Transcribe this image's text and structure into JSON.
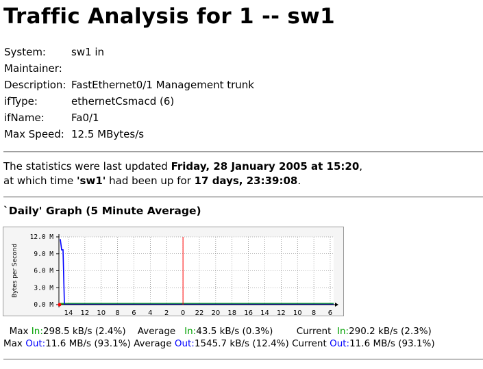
{
  "title": "Traffic Analysis for 1 -- sw1",
  "info": [
    {
      "key": "System:",
      "value": "sw1 in"
    },
    {
      "key": "Maintainer:",
      "value": ""
    },
    {
      "key": "Description:",
      "value": "FastEthernet0/1 Management trunk"
    },
    {
      "key": "ifType:",
      "value": "ethernetCsmacd (6)"
    },
    {
      "key": "ifName:",
      "value": "Fa0/1"
    },
    {
      "key": "Max Speed:",
      "value": "12.5 MBytes/s"
    }
  ],
  "stats": {
    "line1_prefix": "The statistics were last updated ",
    "updated": "Friday, 28 January 2005 at 15:20",
    "line1_suffix": ",",
    "line2_prefix": "at which time ",
    "system": "'sw1'",
    "line2_mid": " had been up for ",
    "uptime": "17 days, 23:39:08",
    "line2_suffix": "."
  },
  "graph_title": "`Daily' Graph (5 Minute Average)",
  "colors": {
    "in": "#00a000",
    "out": "#0000ff",
    "now_marker": "#ff0000",
    "grid": "#666666"
  },
  "chart_data": {
    "type": "area",
    "ylabel": "Bytes per Second",
    "y_ticks": [
      "0.0 M",
      "3.0 M",
      "6.0 M",
      "9.0 M",
      "12.0 M"
    ],
    "ylim": [
      0,
      12
    ],
    "x_ticks": [
      "14",
      "12",
      "10",
      "8",
      "6",
      "4",
      "2",
      "0",
      "22",
      "20",
      "18",
      "16",
      "14",
      "12",
      "10",
      "8",
      "6"
    ],
    "grid": true,
    "series": [
      {
        "name": "In",
        "values": [
          0.3,
          0.3,
          0.3,
          0.3,
          0.3,
          0.3,
          0.3,
          0.3,
          0.3,
          0.3,
          0.3,
          0.3,
          0.3,
          0.3,
          0.3,
          0.3,
          0.3
        ]
      },
      {
        "name": "Out",
        "values": [
          11.6,
          9.7,
          9.7,
          0.05,
          0.05,
          0.05,
          0.05,
          0.05,
          0.05,
          0.05,
          0.05,
          0.05,
          0.05,
          0.05,
          0.05,
          0.05,
          0.05
        ]
      }
    ]
  },
  "legend": {
    "row1": {
      "max_label": "Max ",
      "max_in_label": "In:",
      "max_in": "298.5 kB/s (2.4%)",
      "avg_label": "Average ",
      "avg_in_label": "In:",
      "avg_in": "43.5 kB/s (0.3%)",
      "cur_label": "Current ",
      "cur_in_label": "In:",
      "cur_in": "290.2 kB/s (2.3%)"
    },
    "row2": {
      "max_label": "Max ",
      "max_out_label": "Out:",
      "max_out": "11.6 MB/s (93.1%)",
      "avg_label": "Average ",
      "avg_out_label": "Out:",
      "avg_out": "1545.7 kB/s (12.4%)",
      "cur_label": "Current ",
      "cur_out_label": "Out:",
      "cur_out": "11.6 MB/s (93.1%)"
    }
  }
}
